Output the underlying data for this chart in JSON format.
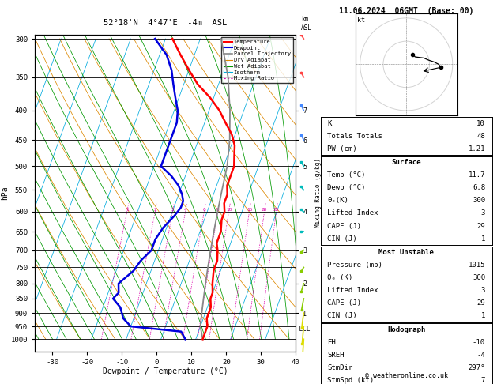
{
  "title_left": "52°18'N  4°47'E  -4m  ASL",
  "title_right": "11.06.2024  06GMT  (Base: 00)",
  "xlabel": "Dewpoint / Temperature (°C)",
  "pressure_ticks": [
    300,
    350,
    400,
    450,
    500,
    550,
    600,
    650,
    700,
    750,
    800,
    850,
    900,
    950,
    1000
  ],
  "xlim": [
    -35,
    40
  ],
  "xticks": [
    -30,
    -20,
    -10,
    0,
    10,
    20,
    30,
    40
  ],
  "skew_factor": 33.0,
  "temp_profile_p": [
    300,
    320,
    340,
    360,
    380,
    400,
    420,
    440,
    460,
    480,
    500,
    520,
    540,
    560,
    580,
    600,
    620,
    650,
    680,
    700,
    730,
    760,
    800,
    830,
    850,
    880,
    900,
    920,
    950,
    970,
    1000
  ],
  "temp_profile_t": [
    -28,
    -24,
    -20,
    -16,
    -11,
    -7,
    -4,
    -1,
    1,
    2,
    3,
    3,
    3,
    4,
    4,
    5,
    5,
    6,
    6,
    7,
    8,
    8,
    9,
    10,
    10,
    11,
    11,
    11,
    12,
    12,
    12
  ],
  "dewp_profile_p": [
    300,
    320,
    340,
    360,
    380,
    400,
    420,
    440,
    460,
    480,
    500,
    520,
    540,
    560,
    575,
    590,
    610,
    640,
    670,
    700,
    730,
    760,
    800,
    830,
    850,
    880,
    900,
    920,
    950,
    970,
    1000
  ],
  "dewp_profile_t": [
    -33,
    -28,
    -25,
    -23,
    -21,
    -19,
    -18,
    -18,
    -18,
    -18,
    -18,
    -14,
    -11,
    -9,
    -8,
    -8,
    -9,
    -11,
    -12,
    -12,
    -14,
    -15,
    -18,
    -17,
    -18,
    -15,
    -14,
    -13,
    -10,
    5,
    7
  ],
  "parcel_profile_p": [
    1000,
    950,
    900,
    850,
    800,
    750,
    700,
    650,
    600,
    550,
    500,
    450,
    400,
    350,
    300
  ],
  "parcel_profile_t": [
    12,
    10,
    9,
    8,
    7,
    6,
    5,
    4,
    3,
    2,
    1,
    -1,
    -4,
    -8,
    -14
  ],
  "dry_adiabat_color": "#dd8800",
  "wet_adiabat_color": "#009900",
  "isotherm_color": "#00aadd",
  "mixing_ratio_color": "#dd00aa",
  "temp_color": "#ff0000",
  "dewp_color": "#0000dd",
  "parcel_color": "#888888",
  "km_ticks_p": [
    400,
    450,
    500,
    600,
    700,
    800,
    900
  ],
  "km_ticks_v": [
    7,
    6,
    5,
    4,
    3,
    2,
    1
  ],
  "mixing_ratio_values": [
    1,
    2,
    3,
    4,
    6,
    8,
    10,
    15,
    20,
    25
  ],
  "lcl_pressure": 960,
  "wind_barbs_p": [
    1000,
    950,
    900,
    850,
    800,
    750,
    700,
    650,
    600,
    550,
    500,
    450,
    400,
    350,
    300
  ],
  "wind_speeds_kt": [
    5,
    5,
    5,
    5,
    8,
    10,
    12,
    14,
    15,
    14,
    15,
    18,
    20,
    22,
    23
  ],
  "wind_dirs_deg": [
    210,
    220,
    230,
    240,
    250,
    260,
    265,
    270,
    275,
    278,
    280,
    282,
    283,
    282,
    280
  ],
  "sounding_info": {
    "K": 10,
    "Totals_Totals": 48,
    "PW_cm": 1.21,
    "Surface_Temp": 11.7,
    "Surface_Dewp": 6.8,
    "Surface_theta_e": 300,
    "Surface_LI": 3,
    "Surface_CAPE": 29,
    "Surface_CIN": 1,
    "MU_Pressure": 1015,
    "MU_theta_e": 300,
    "MU_LI": 3,
    "MU_CAPE": 29,
    "MU_CIN": 1,
    "Hodo_EH": -10,
    "Hodo_SREH": -4,
    "Hodo_StmDir": 297,
    "Hodo_StmSpd": 7
  },
  "hodo_wind_speeds_kt": [
    5,
    5,
    5,
    8,
    10,
    12,
    14,
    15
  ],
  "hodo_wind_dirs_deg": [
    210,
    220,
    230,
    250,
    260,
    265,
    270,
    275
  ]
}
